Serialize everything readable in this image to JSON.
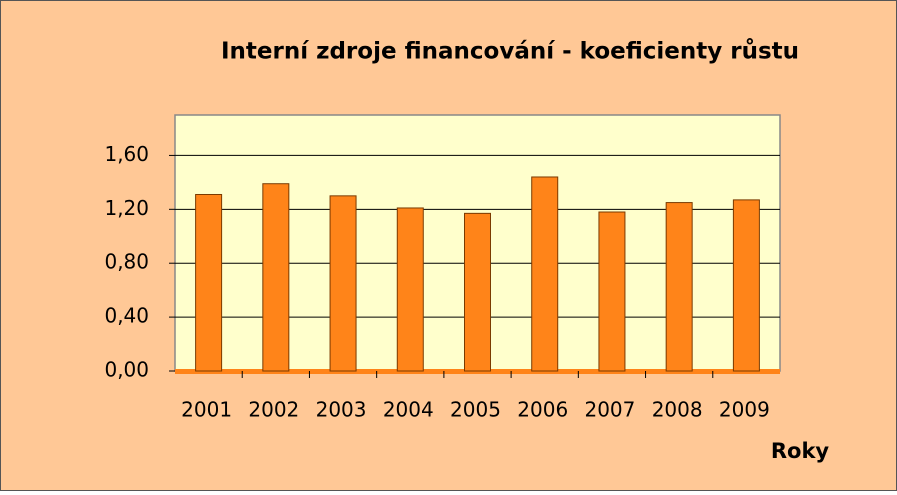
{
  "chart_data": {
    "type": "bar",
    "title": "Interní zdroje financování - koeficienty růstu",
    "x_label": "Roky",
    "categories": [
      "2001",
      "2002",
      "2003",
      "2004",
      "2005",
      "2006",
      "2007",
      "2008",
      "2009"
    ],
    "values": [
      1.31,
      1.39,
      1.3,
      1.21,
      1.17,
      1.44,
      1.18,
      1.25,
      1.27
    ],
    "color": "#ff8419",
    "ylim": [
      0,
      1.9
    ],
    "yticks": [
      {
        "value": 0,
        "label": "0,00"
      },
      {
        "value": 0.4,
        "label": "0,40"
      },
      {
        "value": 0.8,
        "label": "0,80"
      },
      {
        "value": 1.2,
        "label": "1,20"
      },
      {
        "value": 1.6,
        "label": "1,60"
      }
    ],
    "grid": true
  }
}
